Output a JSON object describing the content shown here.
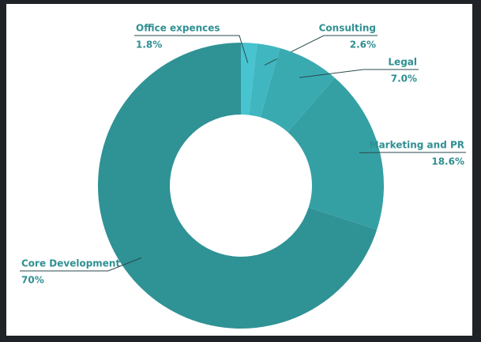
{
  "chart_data": {
    "type": "pie",
    "categories": [
      "Office expences",
      "Consulting",
      "Legal",
      "Marketing and PR",
      "Core Development"
    ],
    "values": [
      1.8,
      2.6,
      7.0,
      18.6,
      70
    ],
    "value_labels": [
      "1.8%",
      "2.6%",
      "7.0%",
      "18.6%",
      "70%"
    ],
    "colors": [
      "#47c4cf",
      "#40b7c0",
      "#3aaab1",
      "#35a0a4",
      "#2f9295"
    ]
  }
}
